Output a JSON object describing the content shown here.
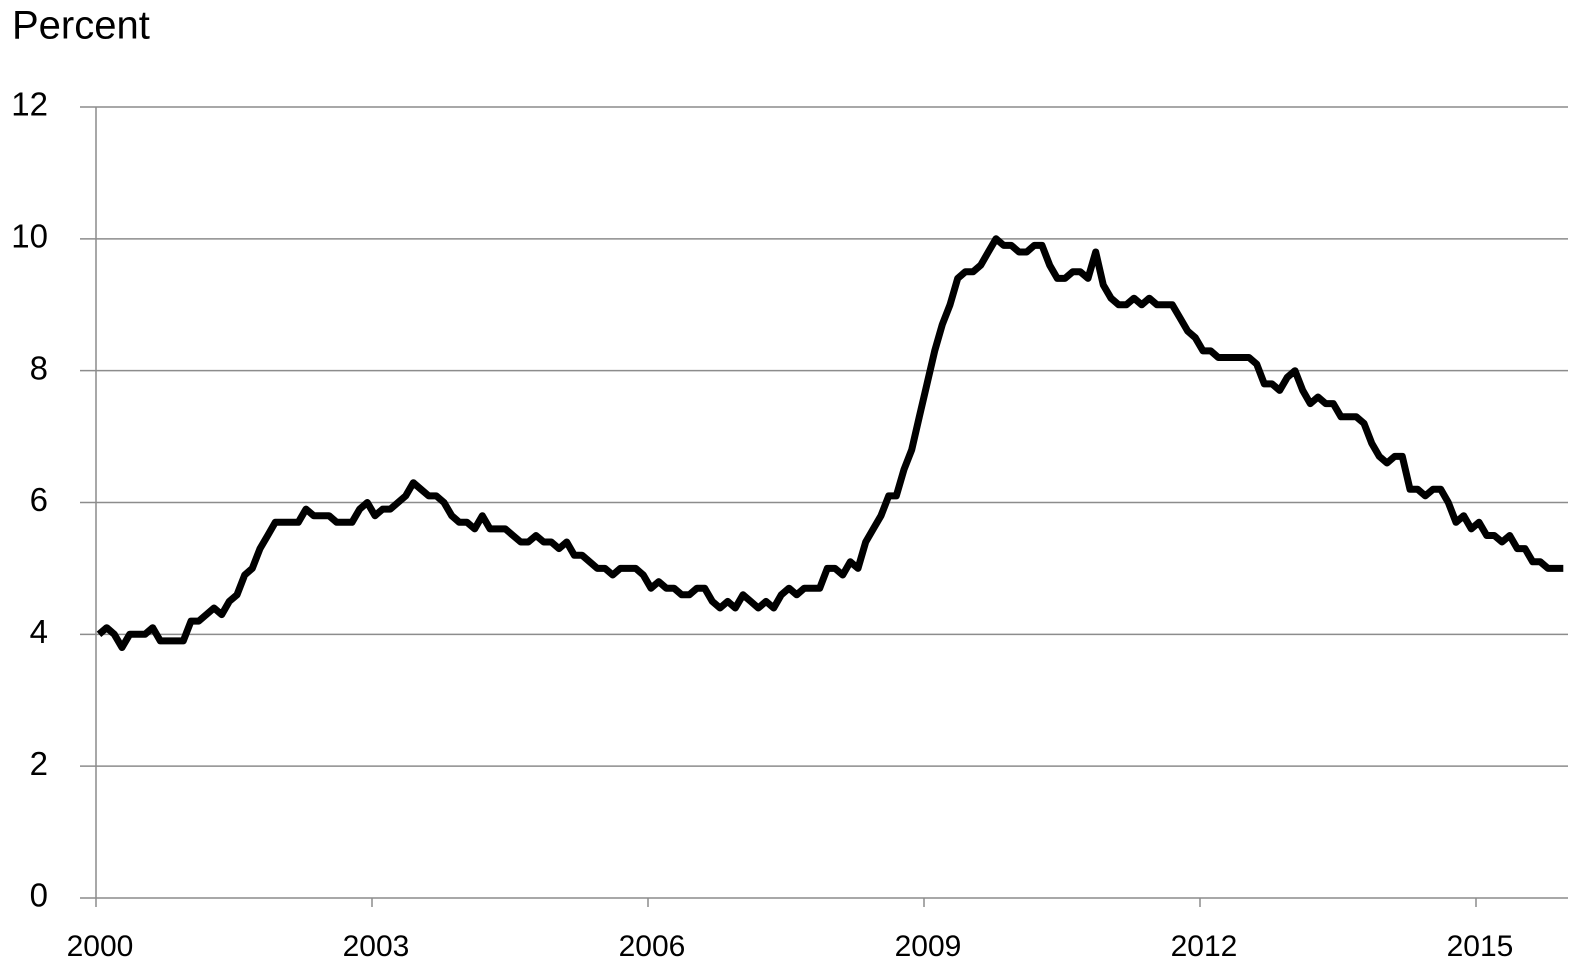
{
  "chart_data": {
    "type": "line",
    "y_label": "Percent",
    "categories": [
      "2000",
      null,
      null,
      null,
      null,
      null,
      null,
      null,
      null,
      null,
      null,
      null,
      null,
      null,
      null,
      null,
      null,
      null,
      null,
      null,
      null,
      null,
      null,
      null,
      null,
      null,
      null,
      null,
      null,
      null,
      null,
      null,
      null,
      null,
      null,
      null,
      "2003",
      null,
      null,
      null,
      null,
      null,
      null,
      null,
      null,
      null,
      null,
      null,
      null,
      null,
      null,
      null,
      null,
      null,
      null,
      null,
      null,
      null,
      null,
      null,
      null,
      null,
      null,
      null,
      null,
      null,
      null,
      null,
      null,
      null,
      null,
      null,
      "2006",
      null,
      null,
      null,
      null,
      null,
      null,
      null,
      null,
      null,
      null,
      null,
      null,
      null,
      null,
      null,
      null,
      null,
      null,
      null,
      null,
      null,
      null,
      null,
      null,
      null,
      null,
      null,
      null,
      null,
      null,
      null,
      null,
      null,
      null,
      null,
      "2009",
      null,
      null,
      null,
      null,
      null,
      null,
      null,
      null,
      null,
      null,
      null,
      null,
      null,
      null,
      null,
      null,
      null,
      null,
      null,
      null,
      null,
      null,
      null,
      null,
      null,
      null,
      null,
      null,
      null,
      null,
      null,
      null,
      null,
      null,
      null,
      "2012",
      null,
      null,
      null,
      null,
      null,
      null,
      null,
      null,
      null,
      null,
      null,
      null,
      null,
      null,
      null,
      null,
      null,
      null,
      null,
      null,
      null,
      null,
      null,
      null,
      null,
      null,
      null,
      null,
      null,
      null,
      null,
      null,
      null,
      null,
      null,
      "2015",
      null,
      null,
      null,
      null,
      null,
      null,
      null,
      null,
      null,
      null,
      null
    ],
    "series": [
      {
        "color": "#000000",
        "values": [
          4.0,
          4.1,
          4.0,
          3.8,
          4.0,
          4.0,
          4.0,
          4.1,
          3.9,
          3.9,
          3.9,
          3.9,
          4.2,
          4.2,
          4.3,
          4.4,
          4.3,
          4.5,
          4.6,
          4.9,
          5.0,
          5.3,
          5.5,
          5.7,
          5.7,
          5.7,
          5.7,
          5.9,
          5.8,
          5.8,
          5.8,
          5.7,
          5.7,
          5.7,
          5.9,
          6.0,
          5.8,
          5.9,
          5.9,
          6.0,
          6.1,
          6.3,
          6.2,
          6.1,
          6.1,
          6.0,
          5.8,
          5.7,
          5.7,
          5.6,
          5.8,
          5.6,
          5.6,
          5.6,
          5.5,
          5.4,
          5.4,
          5.5,
          5.4,
          5.4,
          5.3,
          5.4,
          5.2,
          5.2,
          5.1,
          5.0,
          5.0,
          4.9,
          5.0,
          5.0,
          5.0,
          4.9,
          4.7,
          4.8,
          4.7,
          4.7,
          4.6,
          4.6,
          4.7,
          4.7,
          4.5,
          4.4,
          4.5,
          4.4,
          4.6,
          4.5,
          4.4,
          4.5,
          4.4,
          4.6,
          4.7,
          4.6,
          4.7,
          4.7,
          4.7,
          5.0,
          5.0,
          4.9,
          5.1,
          5.0,
          5.4,
          5.6,
          5.8,
          6.1,
          6.1,
          6.5,
          6.8,
          7.3,
          7.8,
          8.3,
          8.7,
          9.0,
          9.4,
          9.5,
          9.5,
          9.6,
          9.8,
          10.0,
          9.9,
          9.9,
          9.8,
          9.8,
          9.9,
          9.9,
          9.6,
          9.4,
          9.4,
          9.5,
          9.5,
          9.4,
          9.8,
          9.3,
          9.1,
          9.0,
          9.0,
          9.1,
          9.0,
          9.1,
          9.0,
          9.0,
          9.0,
          8.8,
          8.6,
          8.5,
          8.3,
          8.3,
          8.2,
          8.2,
          8.2,
          8.2,
          8.2,
          8.1,
          7.8,
          7.8,
          7.7,
          7.9,
          8.0,
          7.7,
          7.5,
          7.6,
          7.5,
          7.5,
          7.3,
          7.3,
          7.3,
          7.2,
          6.9,
          6.7,
          6.6,
          6.7,
          6.7,
          6.2,
          6.2,
          6.1,
          6.2,
          6.2,
          6.0,
          5.7,
          5.8,
          5.6,
          5.7,
          5.5,
          5.5,
          5.4,
          5.5,
          5.3,
          5.3,
          5.1,
          5.1,
          5.0,
          5.0,
          5.0
        ]
      }
    ],
    "ylim": [
      0,
      12
    ],
    "yticks": [
      0,
      2,
      4,
      6,
      8,
      10,
      12
    ],
    "grid": true
  }
}
